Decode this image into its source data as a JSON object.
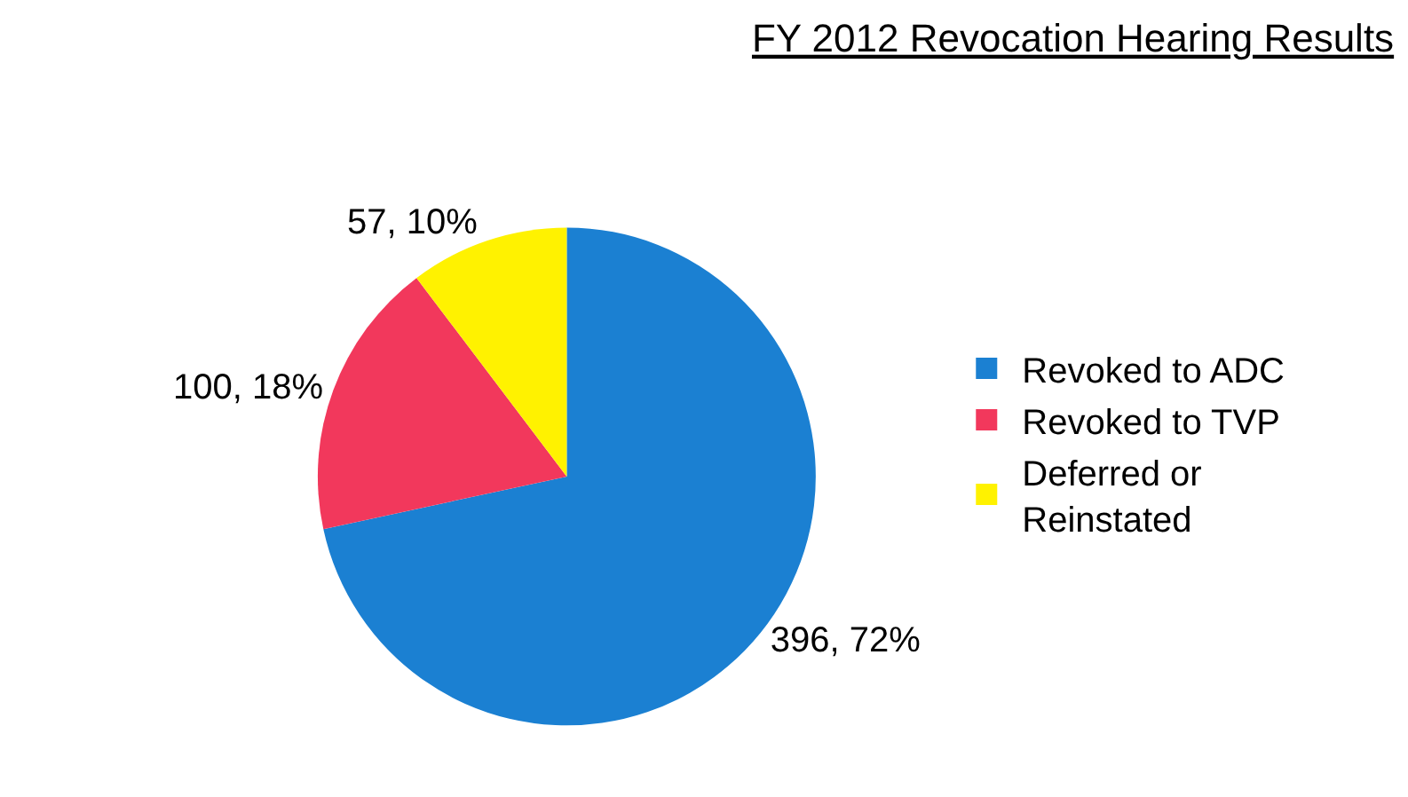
{
  "chart_data": {
    "type": "pie",
    "title": "FY 2012 Revocation Hearing Results",
    "categories": [
      "Revoked to ADC",
      "Revoked to TVP",
      "Deferred or Reinstated"
    ],
    "values": [
      396,
      100,
      57
    ],
    "colors": [
      "#1b80d2",
      "#f2385c",
      "#fff200"
    ],
    "value_labels": [
      "396, 72%",
      "100, 18%",
      "57, 10%"
    ],
    "legend": "right"
  }
}
